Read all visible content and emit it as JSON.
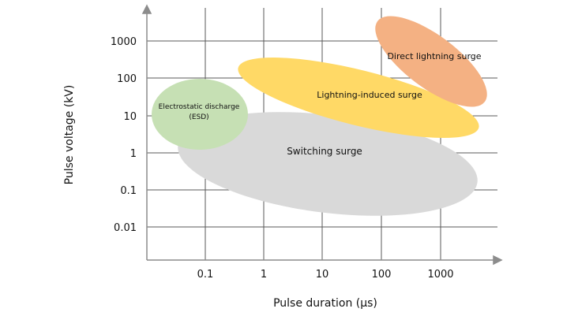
{
  "chart_data": {
    "type": "diagram",
    "xlabel": "Pulse duration (μs)",
    "ylabel": "Pulse voltage (kV)",
    "x_ticks": [
      "0.1",
      "1",
      "10",
      "100",
      "1000"
    ],
    "y_ticks": [
      "1000",
      "100",
      "10",
      "1",
      "0.1",
      "0.01"
    ],
    "x_scale": "log",
    "y_scale": "log",
    "grid": true,
    "regions": [
      {
        "name": "Switching surge",
        "label_lines": [
          "Switching surge"
        ],
        "color": "#d9d9d9",
        "x_range": [
          0.02,
          4000
        ],
        "y_range": [
          0.04,
          25
        ]
      },
      {
        "name": "Electrostatic discharge (ESD)",
        "label_lines": [
          "Electrostatic  discharge",
          "(ESD)"
        ],
        "color": "#c6e0b4",
        "x_range": [
          0.01,
          0.6
        ],
        "y_range": [
          1.2,
          200
        ]
      },
      {
        "name": "Lightning-induced surge",
        "label_lines": [
          "Lightning-induced surge"
        ],
        "color": "#ffd966",
        "x_range": [
          0.5,
          3500
        ],
        "y_range": [
          3,
          200
        ]
      },
      {
        "name": "Direct lightning surge",
        "label_lines": [
          "Direct lightning surge"
        ],
        "color": "#f4b183",
        "x_range": [
          60,
          4000
        ],
        "y_range": [
          30,
          3000
        ]
      }
    ]
  }
}
